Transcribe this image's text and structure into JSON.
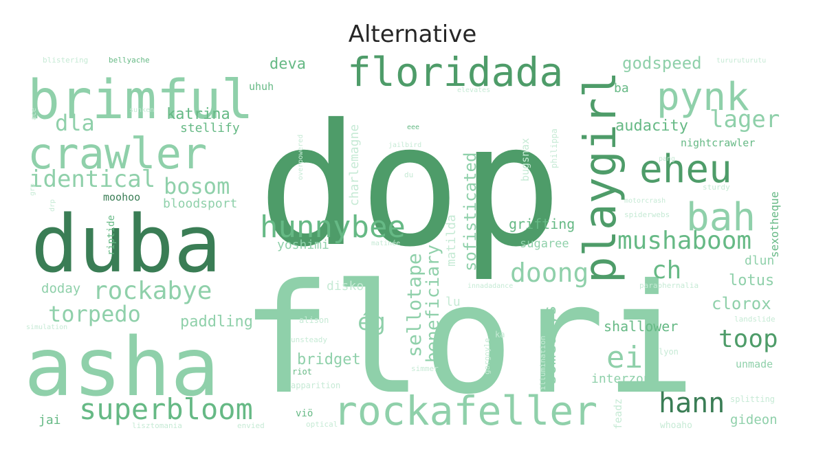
{
  "title": "Alternative",
  "palette": {
    "darkest": "#3a7d55",
    "dark": "#4e9c69",
    "mid": "#66b985",
    "light": "#8fd0aa",
    "pale": "#a9ddbf",
    "faint": "#c6ead5"
  },
  "words": [
    "dop",
    "flori",
    "duba",
    "asha",
    "brimful",
    "floridada",
    "crawler",
    "playgirl",
    "pynk",
    "eheu",
    "rockafeller",
    "bah",
    "hunnybee",
    "superbloom",
    "mushaboom",
    "identical",
    "rockabye",
    "torpedo",
    "doong",
    "hann",
    "toop",
    "ei",
    "ég",
    "lager",
    "bosom",
    "dla",
    "ch",
    "sellotape",
    "beneficiary",
    "sofisticated",
    "charlemagne",
    "matilda",
    "somedays",
    "bridget",
    "paddling",
    "godspeed",
    "deva",
    "katrina",
    "audacity",
    "clorox",
    "lotus",
    "shallower",
    "grifting",
    "stellify",
    "bloodsport",
    "moohoo",
    "riptide",
    "yoshimi",
    "sugaree",
    "dlun",
    "doday",
    "disko",
    "interzone",
    "gideon",
    "unmade",
    "jai",
    "nightcrawler",
    "sexotheque",
    "bugsnax",
    "philippa",
    "uhuh",
    "ba",
    "lu",
    "viö",
    "ka",
    "lyon",
    "alison",
    "unsteady",
    "riot",
    "simmer",
    "gargoyle",
    "illumination",
    "feadz",
    "whoaho",
    "apparition",
    "optical",
    "envied",
    "lisztomania",
    "splitting",
    "landslide",
    "paraphernalia",
    "innadadance",
    "motorcrash",
    "spiderwebs",
    "sturdy",
    "pang",
    "du",
    "jailbird",
    "overpowered",
    "eee",
    "elevates",
    "sunken",
    "blistering",
    "bellyache",
    "tururuturutu",
    "matinée",
    "simulation",
    "drp",
    "grp",
    "ace"
  ]
}
